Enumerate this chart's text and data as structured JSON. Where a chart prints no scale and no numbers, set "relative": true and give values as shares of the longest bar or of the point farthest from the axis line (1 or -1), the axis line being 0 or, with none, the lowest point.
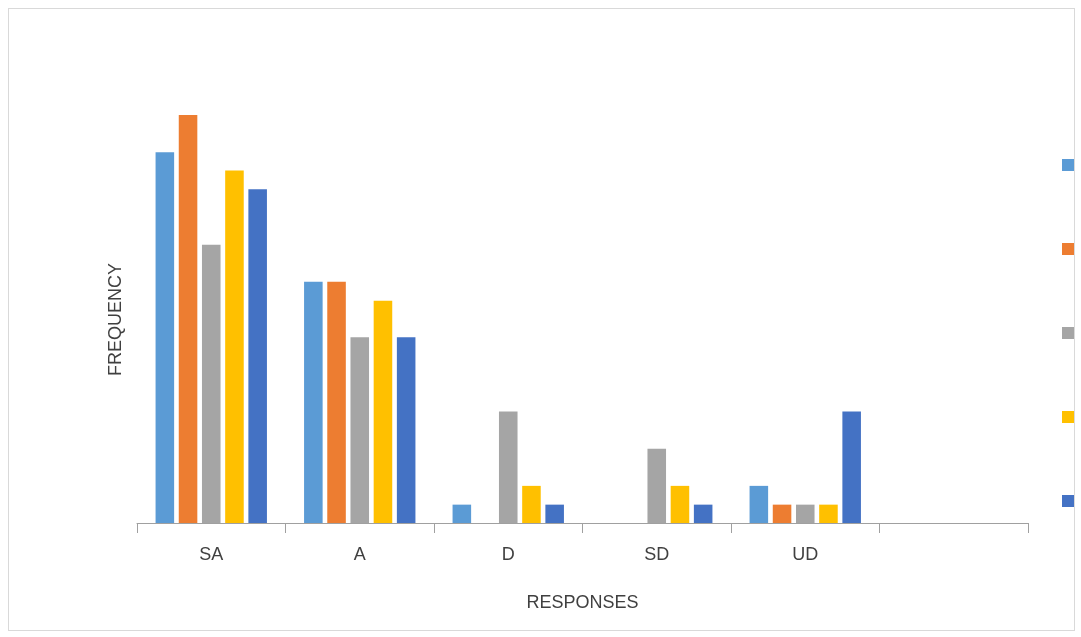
{
  "chart_data": {
    "type": "bar",
    "xlabel": "RESPONSES",
    "ylabel": "FREQUENCY",
    "relative": true,
    "categories": [
      "SA",
      "A",
      "D",
      "SD",
      "UD",
      null
    ],
    "series": [
      {
        "color": "#5b9bd5",
        "values": [
          0.909,
          0.591,
          0.045,
          0,
          0.091,
          null
        ]
      },
      {
        "color": "#ed7d31",
        "values": [
          1,
          0.591,
          0,
          0,
          0.045,
          null
        ]
      },
      {
        "color": "#a5a5a5",
        "values": [
          0.682,
          0.455,
          0.273,
          0.182,
          0.045,
          null
        ]
      },
      {
        "color": "#ffc000",
        "values": [
          0.864,
          0.545,
          0.091,
          0.091,
          0.045,
          null
        ]
      },
      {
        "color": "#4472c4",
        "values": [
          0.818,
          0.455,
          0.045,
          0.045,
          0.273,
          null
        ]
      }
    ]
  }
}
